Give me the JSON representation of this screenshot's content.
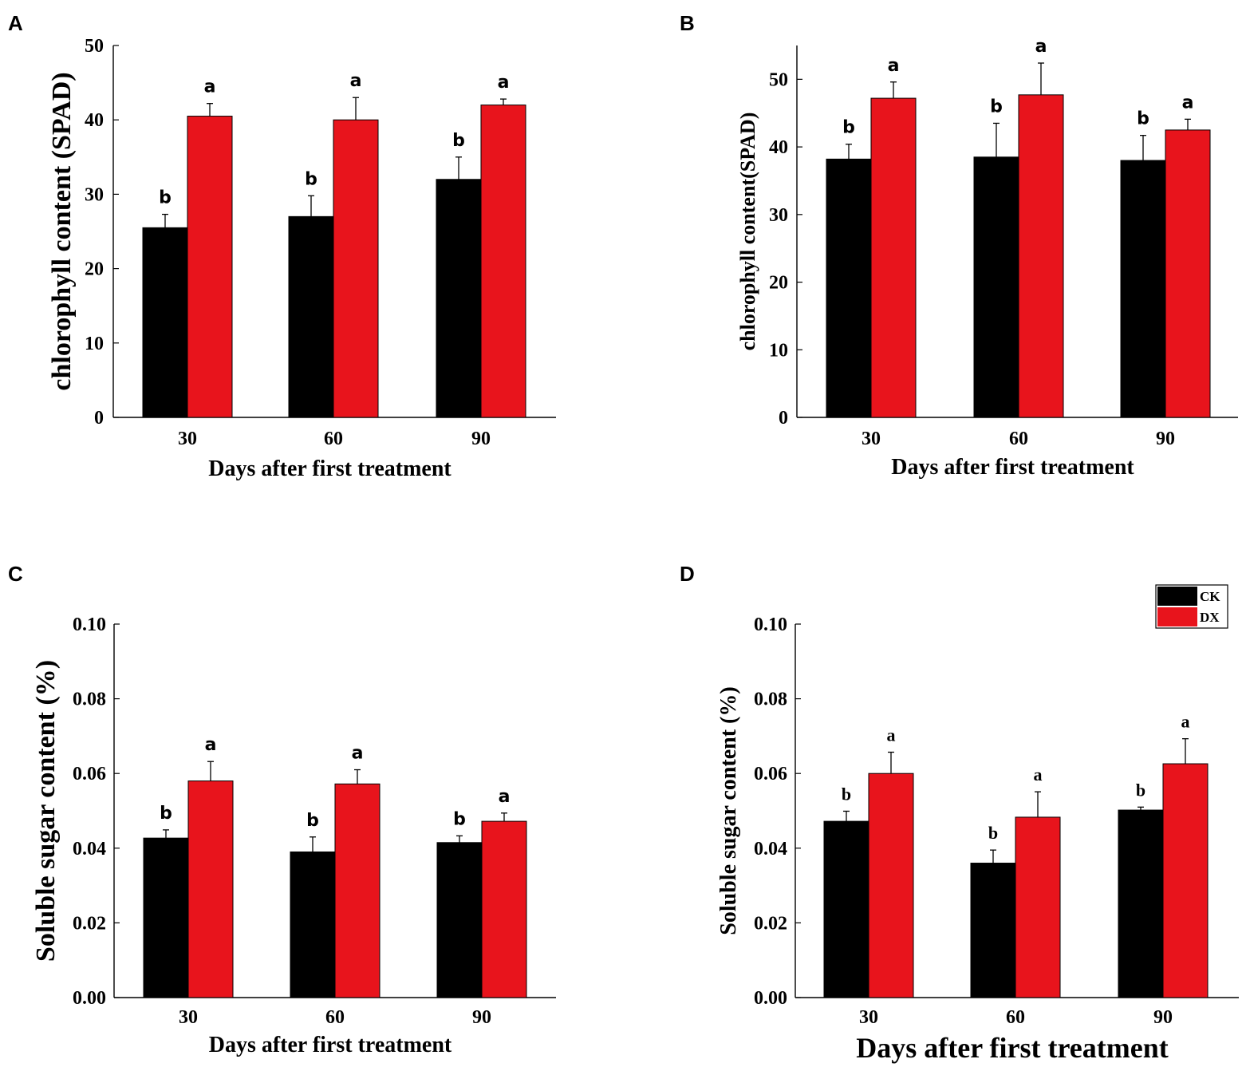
{
  "colors": {
    "CK": "#000000",
    "DX": "#e8141c",
    "axis": "#000000"
  },
  "legend": {
    "placement": "top-right",
    "entries": [
      "CK",
      "DX"
    ]
  },
  "chart_data": [
    {
      "panel": "A",
      "type": "bar",
      "categories": [
        "30",
        "60",
        "90"
      ],
      "series": [
        {
          "name": "CK",
          "values": [
            25.5,
            27.0,
            32.0
          ],
          "errors": [
            1.8,
            2.8,
            3.0
          ],
          "letters": [
            "b",
            "b",
            "b"
          ]
        },
        {
          "name": "DX",
          "values": [
            40.5,
            40.0,
            42.0
          ],
          "errors": [
            1.7,
            3.0,
            0.8
          ],
          "letters": [
            "a",
            "a",
            "a"
          ]
        }
      ],
      "ylim": [
        0,
        50
      ],
      "yticks": [
        "0",
        "10",
        "20",
        "30",
        "40",
        "50"
      ],
      "ytick_values": [
        0,
        10,
        20,
        30,
        40,
        50
      ],
      "ylabel": "chlorophyll  content (SPAD)",
      "xlabel": "Days after first treatment",
      "sig_font": "sans"
    },
    {
      "panel": "B",
      "type": "bar",
      "categories": [
        "30",
        "60",
        "90"
      ],
      "series": [
        {
          "name": "CK",
          "values": [
            38.2,
            38.5,
            38.0
          ],
          "errors": [
            2.2,
            5.0,
            3.7
          ],
          "letters": [
            "b",
            "b",
            "b"
          ]
        },
        {
          "name": "DX",
          "values": [
            47.2,
            47.7,
            42.5
          ],
          "errors": [
            2.4,
            4.7,
            1.6
          ],
          "letters": [
            "a",
            "a",
            "a"
          ]
        }
      ],
      "ylim": [
        0,
        55
      ],
      "yticks": [
        "0",
        "10",
        "20",
        "30",
        "40",
        "50"
      ],
      "ytick_values": [
        0,
        10,
        20,
        30,
        40,
        50
      ],
      "ylabel": "chlorophyll  content(SPAD)",
      "xlabel": "Days after first treatment",
      "sig_font": "sans"
    },
    {
      "panel": "C",
      "type": "bar",
      "categories": [
        "30",
        "60",
        "90"
      ],
      "series": [
        {
          "name": "CK",
          "values": [
            0.0427,
            0.039,
            0.0415
          ],
          "errors": [
            0.0022,
            0.004,
            0.0018
          ],
          "letters": [
            "b",
            "b",
            "b"
          ]
        },
        {
          "name": "DX",
          "values": [
            0.058,
            0.0572,
            0.0472
          ],
          "errors": [
            0.0052,
            0.0038,
            0.0022
          ],
          "letters": [
            "a",
            "a",
            "a"
          ]
        }
      ],
      "ylim": [
        0,
        0.1
      ],
      "yticks": [
        "0.00",
        "0.02",
        "0.04",
        "0.06",
        "0.08",
        "0.10"
      ],
      "ytick_values": [
        0,
        0.02,
        0.04,
        0.06,
        0.08,
        0.1
      ],
      "ylabel": "Soluble sugar content (%)",
      "xlabel": "Days after first treatment",
      "sig_font": "sans"
    },
    {
      "panel": "D",
      "type": "bar",
      "categories": [
        "30",
        "60",
        "90"
      ],
      "series": [
        {
          "name": "CK",
          "values": [
            0.0472,
            0.036,
            0.0502
          ],
          "errors": [
            0.0027,
            0.0035,
            0.0008
          ],
          "letters": [
            "b",
            "b",
            "b"
          ]
        },
        {
          "name": "DX",
          "values": [
            0.06,
            0.0483,
            0.0626
          ],
          "errors": [
            0.0057,
            0.0068,
            0.0067
          ],
          "letters": [
            "a",
            "a",
            "a"
          ]
        }
      ],
      "ylim": [
        0,
        0.1
      ],
      "yticks": [
        "0.00",
        "0.02",
        "0.04",
        "0.06",
        "0.08",
        "0.10"
      ],
      "ytick_values": [
        0,
        0.02,
        0.04,
        0.06,
        0.08,
        0.1
      ],
      "ylabel": "Soluble sugar content (%)",
      "xlabel": "Days after first treatment",
      "sig_font": "serif",
      "legend": true
    }
  ]
}
